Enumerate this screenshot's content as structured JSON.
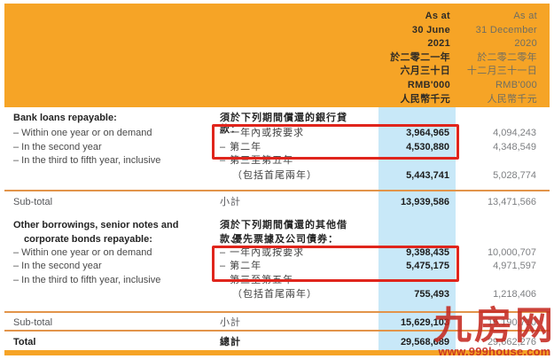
{
  "header": {
    "current": {
      "lines": [
        "As at",
        "30 June",
        "2021",
        "於二零二一年",
        "六月三十日",
        "RMB'000",
        "人民幣千元"
      ]
    },
    "prior": {
      "lines": [
        "As at",
        "31 December",
        "2020",
        "於二零二零年",
        "十二月三十一日",
        "RMB'000",
        "人民幣千元"
      ]
    }
  },
  "sections": [
    {
      "title_en": "Bank loans repayable:",
      "title_zh": "須於下列期間償還的銀行貸款：",
      "rows": [
        {
          "en": "– Within one year or on demand",
          "zh": "– 一年內或按要求",
          "v2021": "3,964,965",
          "v2020": "4,094,243"
        },
        {
          "en": "– In the second year",
          "zh": "– 第二年",
          "v2021": "4,530,880",
          "v2020": "4,348,549"
        },
        {
          "en": "– In the third to fifth year, inclusive",
          "zh": "– 第三至第五年",
          "zh_cont": "（包括首尾兩年）",
          "v2021": "5,443,741",
          "v2020": "5,028,774"
        }
      ],
      "subtotal": {
        "en": "Sub-total",
        "zh": "小計",
        "v2021": "13,939,586",
        "v2020": "13,471,566"
      }
    },
    {
      "title_en": "Other borrowings, senior notes and",
      "title_en_cont": "corporate bonds repayable:",
      "title_zh": "須於下列期間償還的其他借款、",
      "title_zh_cont": "優先票據及公司債券：",
      "rows": [
        {
          "en": "– Within one year or on demand",
          "zh": "– 一年內或按要求",
          "v2021": "9,398,435",
          "v2020": "10,000,707"
        },
        {
          "en": "– In the second year",
          "zh": "– 第二年",
          "v2021": "5,475,175",
          "v2020": "4,971,597"
        },
        {
          "en": "– In the third to fifth year, inclusive",
          "zh": "– 第三至第五年",
          "zh_cont": "（包括首尾兩年）",
          "v2021": "755,493",
          "v2020": "1,218,406"
        }
      ],
      "subtotal": {
        "en": "Sub-total",
        "zh": "小計",
        "v2021": "15,629,103",
        "v2020": "16,190,710"
      }
    }
  ],
  "total": {
    "en": "Total",
    "zh": "總計",
    "v2021": "29,568,689",
    "v2020": "29,662,276"
  },
  "watermark": {
    "text": "九房网",
    "url": "www.999house.com"
  },
  "colors": {
    "header_orange": "#F6A426",
    "column_blue": "#C8E8F8",
    "highlight_red": "#E0251C",
    "divider_orange": "#E2944A",
    "watermark_red": "#C52A21"
  }
}
